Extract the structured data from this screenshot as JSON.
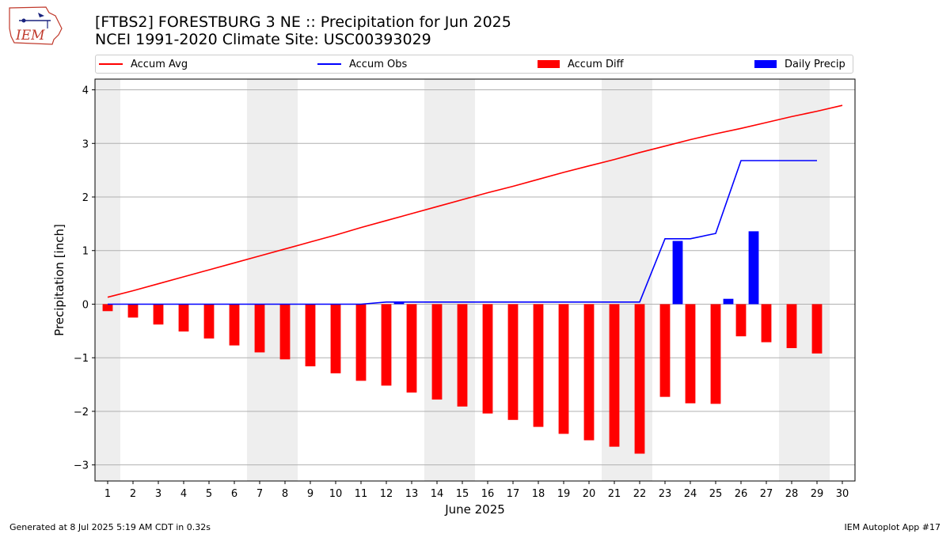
{
  "logo": {
    "text": "IEM"
  },
  "title": {
    "line1": "[FTBS2] FORESTBURG 3 NE :: Precipitation for Jun 2025",
    "line2": "NCEI 1991-2020 Climate Site: USC00393029"
  },
  "legend": {
    "items": [
      {
        "label": "Accum Avg",
        "color": "#ff0000",
        "kind": "line"
      },
      {
        "label": "Accum Obs",
        "color": "#0000ff",
        "kind": "line"
      },
      {
        "label": "Accum Diff",
        "color": "#ff0000",
        "kind": "box"
      },
      {
        "label": "Daily Precip",
        "color": "#0000ff",
        "kind": "box"
      }
    ]
  },
  "chart_data": {
    "type": "bar",
    "xlabel": "June 2025",
    "ylabel": "Precipitation [inch]",
    "ylim": [
      -3.3,
      4.2
    ],
    "xlim": [
      0.5,
      30.5
    ],
    "yticks": [
      -3,
      -2,
      -1,
      0,
      1,
      2,
      3,
      4
    ],
    "ytick_labels": [
      "−3",
      "−2",
      "−1",
      "0",
      "1",
      "2",
      "3",
      "4"
    ],
    "xticks": [
      1,
      2,
      3,
      4,
      5,
      6,
      7,
      8,
      9,
      10,
      11,
      12,
      13,
      14,
      15,
      16,
      17,
      18,
      19,
      20,
      21,
      22,
      23,
      24,
      25,
      26,
      27,
      28,
      29,
      30
    ],
    "grid": "horizontal",
    "legend_position": "top",
    "weekend_shading": [
      [
        0.5,
        1.5
      ],
      [
        6.5,
        8.5
      ],
      [
        13.5,
        15.5
      ],
      [
        20.5,
        22.5
      ],
      [
        27.5,
        29.5
      ]
    ],
    "series": [
      {
        "name": "Accum Avg",
        "kind": "line",
        "color": "#ff0000",
        "x": [
          1,
          2,
          3,
          4,
          5,
          6,
          7,
          8,
          9,
          10,
          11,
          12,
          13,
          14,
          15,
          16,
          17,
          18,
          19,
          20,
          21,
          22,
          23,
          24,
          25,
          26,
          27,
          28,
          29,
          30
        ],
        "values": [
          0.13,
          0.25,
          0.38,
          0.51,
          0.64,
          0.77,
          0.9,
          1.03,
          1.16,
          1.29,
          1.43,
          1.56,
          1.69,
          1.82,
          1.95,
          2.08,
          2.2,
          2.33,
          2.46,
          2.58,
          2.7,
          2.83,
          2.95,
          3.07,
          3.18,
          3.28,
          3.39,
          3.5,
          3.6,
          3.71
        ]
      },
      {
        "name": "Accum Obs",
        "kind": "line",
        "color": "#0000ff",
        "x": [
          1,
          2,
          3,
          4,
          5,
          6,
          7,
          8,
          9,
          10,
          11,
          12,
          13,
          14,
          15,
          16,
          17,
          18,
          19,
          20,
          21,
          22,
          23,
          24,
          25,
          26,
          27,
          28,
          29
        ],
        "values": [
          0,
          0,
          0,
          0,
          0,
          0,
          0,
          0,
          0,
          0,
          0,
          0.04,
          0.04,
          0.04,
          0.04,
          0.04,
          0.04,
          0.04,
          0.04,
          0.04,
          0.04,
          0.04,
          1.22,
          1.22,
          1.32,
          2.68,
          2.68,
          2.68,
          2.68
        ]
      },
      {
        "name": "Accum Diff",
        "kind": "bar",
        "color": "#ff0000",
        "x": [
          1,
          2,
          3,
          4,
          5,
          6,
          7,
          8,
          9,
          10,
          11,
          12,
          13,
          14,
          15,
          16,
          17,
          18,
          19,
          20,
          21,
          22,
          23,
          24,
          25,
          26,
          27,
          28,
          29
        ],
        "values": [
          -0.13,
          -0.25,
          -0.38,
          -0.51,
          -0.64,
          -0.77,
          -0.9,
          -1.03,
          -1.16,
          -1.29,
          -1.43,
          -1.52,
          -1.65,
          -1.78,
          -1.91,
          -2.04,
          -2.16,
          -2.29,
          -2.42,
          -2.54,
          -2.66,
          -2.79,
          -1.73,
          -1.85,
          -1.86,
          -0.6,
          -0.71,
          -0.82,
          -0.92
        ]
      },
      {
        "name": "Daily Precip",
        "kind": "bar",
        "color": "#0000ff",
        "x": [
          1,
          2,
          3,
          4,
          5,
          6,
          7,
          8,
          9,
          10,
          11,
          12,
          13,
          14,
          15,
          16,
          17,
          18,
          19,
          20,
          21,
          22,
          23,
          24,
          25,
          26,
          27,
          28,
          29
        ],
        "values": [
          0,
          0,
          0,
          0,
          0,
          0,
          0,
          0,
          0,
          0,
          0,
          0.04,
          0,
          0,
          0,
          0,
          0,
          0,
          0,
          0,
          0,
          0,
          1.18,
          0,
          0.1,
          1.36,
          0,
          0,
          0
        ]
      }
    ]
  },
  "footer": {
    "left": "Generated at 8 Jul 2025 5:19 AM CDT in 0.32s",
    "right": "IEM Autoplot App #17"
  }
}
